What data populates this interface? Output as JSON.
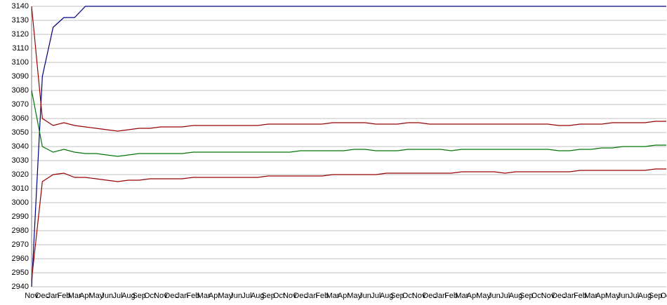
{
  "chart_data": {
    "type": "line",
    "categories": [
      "Nov",
      "Dec",
      "Jan",
      "Feb",
      "Mar",
      "Apr",
      "May",
      "Jun",
      "Jul",
      "Aug",
      "Sep",
      "Oct",
      "Nov",
      "Dec",
      "Jan",
      "Feb",
      "Mar",
      "Apr",
      "May",
      "Jun",
      "Jul",
      "Aug",
      "Sep",
      "Oct",
      "Nov",
      "Dec",
      "Jan",
      "Feb",
      "Mar",
      "Apr",
      "May",
      "Jun",
      "Jul",
      "Aug",
      "Sep",
      "Oct",
      "Nov",
      "Dec",
      "Jan",
      "Feb",
      "Mar",
      "Apr",
      "May",
      "Jun",
      "Jul",
      "Aug",
      "Sep",
      "Oct",
      "Nov",
      "Dec",
      "Jan",
      "Feb",
      "Mar",
      "Apr",
      "May",
      "Jun",
      "Jul",
      "Aug",
      "Sep",
      "Oct"
    ],
    "series": [
      {
        "color": "#000080",
        "values": [
          2940,
          3090,
          3125,
          3132,
          3132,
          3140,
          3140,
          3140,
          3140,
          3140,
          3140,
          3140,
          3140,
          3140,
          3140,
          3140,
          3140,
          3140,
          3140,
          3140,
          3140,
          3140,
          3140,
          3140,
          3140,
          3140,
          3140,
          3140,
          3140,
          3140,
          3140,
          3140,
          3140,
          3140,
          3140,
          3140,
          3140,
          3140,
          3140,
          3140,
          3140,
          3140,
          3140,
          3140,
          3140,
          3140,
          3140,
          3140,
          3140,
          3140,
          3140,
          3140,
          3140,
          3140,
          3140,
          3140,
          3140,
          3140,
          3140,
          3140
        ]
      },
      {
        "color": "#990000",
        "values": [
          3140,
          3060,
          3055,
          3057,
          3055,
          3054,
          3053,
          3052,
          3051,
          3052,
          3053,
          3053,
          3054,
          3054,
          3054,
          3055,
          3055,
          3055,
          3055,
          3055,
          3055,
          3055,
          3056,
          3056,
          3056,
          3056,
          3056,
          3056,
          3057,
          3057,
          3057,
          3057,
          3056,
          3056,
          3056,
          3057,
          3057,
          3056,
          3056,
          3056,
          3056,
          3056,
          3056,
          3056,
          3056,
          3056,
          3056,
          3056,
          3056,
          3055,
          3055,
          3056,
          3056,
          3056,
          3057,
          3057,
          3057,
          3057,
          3058,
          3058
        ]
      },
      {
        "color": "#007700",
        "values": [
          3080,
          3040,
          3036,
          3038,
          3036,
          3035,
          3035,
          3034,
          3033,
          3034,
          3035,
          3035,
          3035,
          3035,
          3035,
          3036,
          3036,
          3036,
          3036,
          3036,
          3036,
          3036,
          3036,
          3036,
          3036,
          3037,
          3037,
          3037,
          3037,
          3037,
          3038,
          3038,
          3037,
          3037,
          3037,
          3038,
          3038,
          3038,
          3038,
          3037,
          3038,
          3038,
          3038,
          3038,
          3038,
          3038,
          3038,
          3038,
          3038,
          3037,
          3037,
          3038,
          3038,
          3039,
          3039,
          3040,
          3040,
          3040,
          3041,
          3041
        ]
      },
      {
        "color": "#990000",
        "values": [
          2945,
          3015,
          3020,
          3021,
          3018,
          3018,
          3017,
          3016,
          3015,
          3016,
          3016,
          3017,
          3017,
          3017,
          3017,
          3018,
          3018,
          3018,
          3018,
          3018,
          3018,
          3018,
          3019,
          3019,
          3019,
          3019,
          3019,
          3019,
          3020,
          3020,
          3020,
          3020,
          3020,
          3021,
          3021,
          3021,
          3021,
          3021,
          3021,
          3021,
          3022,
          3022,
          3022,
          3022,
          3021,
          3022,
          3022,
          3022,
          3022,
          3022,
          3022,
          3023,
          3023,
          3023,
          3023,
          3023,
          3023,
          3023,
          3024,
          3024
        ]
      }
    ],
    "ylim": [
      2940,
      3140
    ],
    "yticks": [
      2940,
      2950,
      2960,
      2970,
      2980,
      2990,
      3000,
      3010,
      3020,
      3030,
      3040,
      3050,
      3060,
      3070,
      3080,
      3090,
      3100,
      3110,
      3120,
      3130,
      3140
    ],
    "grid": true
  }
}
